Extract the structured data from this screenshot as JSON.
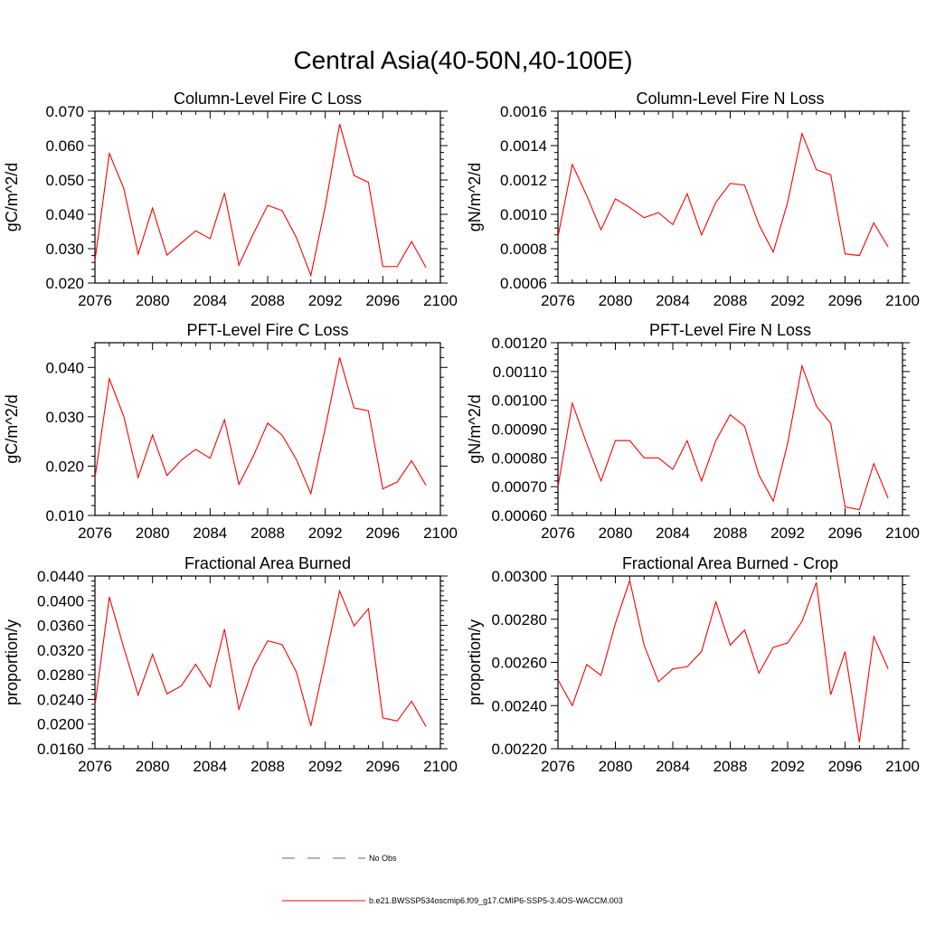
{
  "page_title": "Central Asia(40-50N,40-100E)",
  "legend": {
    "obs_label": "No Obs",
    "model_label": "b.e21.BWSSP534oscmip6.f09_g17.CMIP6-SSP5-3.4OS-WACCM.003",
    "obs_color": "#5a5ab4",
    "model_color": "#ff0000"
  },
  "chart_data": [
    {
      "type": "line",
      "title": "Column-Level Fire C Loss",
      "ylabel": "gC/m^2/d",
      "xlim": [
        2076,
        2100
      ],
      "ylim": [
        0.02,
        0.07
      ],
      "xticks": [
        "2076",
        "2080",
        "2084",
        "2088",
        "2092",
        "2096",
        "2100"
      ],
      "yticks": [
        "0.020",
        "0.030",
        "0.040",
        "0.050",
        "0.060",
        "0.070"
      ],
      "x": [
        2076,
        2077,
        2078,
        2079,
        2080,
        2081,
        2082,
        2083,
        2084,
        2085,
        2086,
        2087,
        2088,
        2089,
        2090,
        2091,
        2092,
        2093,
        2094,
        2095,
        2096,
        2097,
        2098,
        2099
      ],
      "series": [
        {
          "name": "b.e21.BWSSP534oscmip6.f09_g17.CMIP6-SSP5-3.4OS-WACCM.003",
          "values": [
            0.0265,
            0.0577,
            0.0476,
            0.0284,
            0.0418,
            0.0281,
            0.0317,
            0.0352,
            0.0329,
            0.0462,
            0.0252,
            0.0343,
            0.0426,
            0.0411,
            0.0332,
            0.0222,
            0.0422,
            0.0663,
            0.0513,
            0.0493,
            0.0248,
            0.0248,
            0.0321,
            0.0245
          ]
        }
      ]
    },
    {
      "type": "line",
      "title": "Column-Level Fire N Loss",
      "ylabel": "gN/m^2/d",
      "xlim": [
        2076,
        2100
      ],
      "ylim": [
        0.0006,
        0.0016
      ],
      "xticks": [
        "2076",
        "2080",
        "2084",
        "2088",
        "2092",
        "2096",
        "2100"
      ],
      "yticks": [
        "0.0006",
        "0.0008",
        "0.0010",
        "0.0012",
        "0.0014",
        "0.0016"
      ],
      "x": [
        2076,
        2077,
        2078,
        2079,
        2080,
        2081,
        2082,
        2083,
        2084,
        2085,
        2086,
        2087,
        2088,
        2089,
        2090,
        2091,
        2092,
        2093,
        2094,
        2095,
        2096,
        2097,
        2098,
        2099
      ],
      "series": [
        {
          "name": "b.e21.BWSSP534oscmip6.f09_g17.CMIP6-SSP5-3.4OS-WACCM.003",
          "values": [
            0.00087,
            0.00129,
            0.00111,
            0.00091,
            0.00109,
            0.00104,
            0.00098,
            0.00101,
            0.00094,
            0.00112,
            0.00088,
            0.00107,
            0.00118,
            0.00117,
            0.00094,
            0.00078,
            0.00107,
            0.00147,
            0.00126,
            0.00123,
            0.00077,
            0.00076,
            0.00095,
            0.00081
          ]
        }
      ]
    },
    {
      "type": "line",
      "title": "PFT-Level Fire C Loss",
      "ylabel": "gC/m^2/d",
      "xlim": [
        2076,
        2100
      ],
      "ylim": [
        0.01,
        0.045
      ],
      "xticks": [
        "2076",
        "2080",
        "2084",
        "2088",
        "2092",
        "2096",
        "2100"
      ],
      "yticks": [
        "0.010",
        "0.020",
        "0.030",
        "0.040"
      ],
      "x": [
        2076,
        2077,
        2078,
        2079,
        2080,
        2081,
        2082,
        2083,
        2084,
        2085,
        2086,
        2087,
        2088,
        2089,
        2090,
        2091,
        2092,
        2093,
        2094,
        2095,
        2096,
        2097,
        2098,
        2099
      ],
      "series": [
        {
          "name": "b.e21.BWSSP534oscmip6.f09_g17.CMIP6-SSP5-3.4OS-WACCM.003",
          "values": [
            0.0176,
            0.0377,
            0.0301,
            0.0177,
            0.0263,
            0.0181,
            0.0212,
            0.0234,
            0.0216,
            0.0294,
            0.0163,
            0.022,
            0.0287,
            0.0263,
            0.0213,
            0.0144,
            0.0277,
            0.042,
            0.0318,
            0.0312,
            0.0154,
            0.0168,
            0.0211,
            0.0161
          ]
        }
      ]
    },
    {
      "type": "line",
      "title": "PFT-Level Fire N Loss",
      "ylabel": "gN/m^2/d",
      "xlim": [
        2076,
        2100
      ],
      "ylim": [
        0.0006,
        0.0012
      ],
      "xticks": [
        "2076",
        "2080",
        "2084",
        "2088",
        "2092",
        "2096",
        "2100"
      ],
      "yticks": [
        "0.00060",
        "0.00070",
        "0.00080",
        "0.00090",
        "0.00100",
        "0.00110",
        "0.00120"
      ],
      "x": [
        2076,
        2077,
        2078,
        2079,
        2080,
        2081,
        2082,
        2083,
        2084,
        2085,
        2086,
        2087,
        2088,
        2089,
        2090,
        2091,
        2092,
        2093,
        2094,
        2095,
        2096,
        2097,
        2098,
        2099
      ],
      "series": [
        {
          "name": "b.e21.BWSSP534oscmip6.f09_g17.CMIP6-SSP5-3.4OS-WACCM.003",
          "values": [
            0.0007,
            0.00099,
            0.00085,
            0.00072,
            0.00086,
            0.00086,
            0.0008,
            0.0008,
            0.00076,
            0.00086,
            0.00072,
            0.00086,
            0.00095,
            0.00091,
            0.00074,
            0.00065,
            0.00085,
            0.00112,
            0.00098,
            0.00092,
            0.00063,
            0.00062,
            0.00078,
            0.00066
          ]
        }
      ]
    },
    {
      "type": "line",
      "title": "Fractional Area Burned",
      "ylabel": "proportion/y",
      "xlim": [
        2076,
        2100
      ],
      "ylim": [
        0.016,
        0.044
      ],
      "xticks": [
        "2076",
        "2080",
        "2084",
        "2088",
        "2092",
        "2096",
        "2100"
      ],
      "yticks": [
        "0.0160",
        "0.0200",
        "0.0240",
        "0.0280",
        "0.0320",
        "0.0360",
        "0.0400",
        "0.0440"
      ],
      "x": [
        2076,
        2077,
        2078,
        2079,
        2080,
        2081,
        2082,
        2083,
        2084,
        2085,
        2086,
        2087,
        2088,
        2089,
        2090,
        2091,
        2092,
        2093,
        2094,
        2095,
        2096,
        2097,
        2098,
        2099
      ],
      "series": [
        {
          "name": "b.e21.BWSSP534oscmip6.f09_g17.CMIP6-SSP5-3.4OS-WACCM.003",
          "values": [
            0.023,
            0.0406,
            0.0324,
            0.0247,
            0.0313,
            0.0249,
            0.0262,
            0.0297,
            0.026,
            0.0354,
            0.0224,
            0.0292,
            0.0335,
            0.0329,
            0.0284,
            0.0197,
            0.0305,
            0.0416,
            0.0359,
            0.0387,
            0.021,
            0.0205,
            0.0237,
            0.0196
          ]
        }
      ]
    },
    {
      "type": "line",
      "title": "Fractional Area Burned - Crop",
      "ylabel": "proportion/y",
      "xlim": [
        2076,
        2100
      ],
      "ylim": [
        0.0022,
        0.003
      ],
      "xticks": [
        "2076",
        "2080",
        "2084",
        "2088",
        "2092",
        "2096",
        "2100"
      ],
      "yticks": [
        "0.00220",
        "0.00240",
        "0.00260",
        "0.00280",
        "0.00300"
      ],
      "x": [
        2076,
        2077,
        2078,
        2079,
        2080,
        2081,
        2082,
        2083,
        2084,
        2085,
        2086,
        2087,
        2088,
        2089,
        2090,
        2091,
        2092,
        2093,
        2094,
        2095,
        2096,
        2097,
        2098,
        2099
      ],
      "series": [
        {
          "name": "b.e21.BWSSP534oscmip6.f09_g17.CMIP6-SSP5-3.4OS-WACCM.003",
          "values": [
            0.00252,
            0.0024,
            0.00259,
            0.00254,
            0.00278,
            0.00298,
            0.00268,
            0.00251,
            0.00257,
            0.00258,
            0.00265,
            0.00288,
            0.00268,
            0.00275,
            0.00255,
            0.00267,
            0.00269,
            0.00279,
            0.00297,
            0.00245,
            0.00265,
            0.00223,
            0.00272,
            0.00257
          ]
        }
      ]
    }
  ]
}
